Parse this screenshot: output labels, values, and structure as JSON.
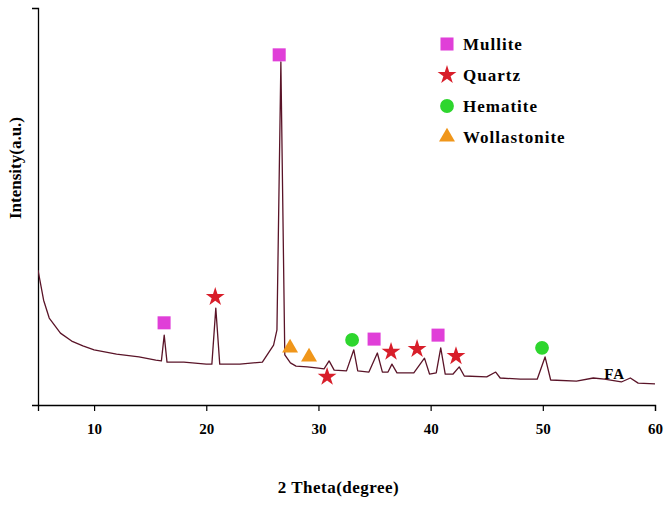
{
  "chart_data": {
    "type": "line",
    "x_label": "2 Theta(degree)",
    "y_label": "Intensity(a.u.)",
    "color": "#5a1428",
    "x": [
      5,
      5.5,
      6,
      7,
      8,
      9,
      10,
      12,
      14,
      15.5,
      16.0,
      16.25,
      16.5,
      18,
      20,
      20.5,
      20.85,
      21.2,
      23,
      25,
      26.0,
      26.3,
      26.65,
      27.0,
      27.5,
      28,
      29,
      30,
      30.5,
      30.95,
      31.4,
      32.5,
      33.15,
      33.5,
      34.5,
      35.25,
      35.7,
      36.2,
      36.55,
      37,
      38.5,
      39.45,
      39.9,
      40.5,
      40.9,
      41.3,
      42,
      42.55,
      43,
      45,
      45.8,
      46.2,
      48,
      49.5,
      50.2,
      50.7,
      53,
      54.5,
      55.5,
      57,
      57.8,
      58.5,
      60
    ],
    "values": [
      34.0,
      26.4,
      21.9,
      18.1,
      16.1,
      14.9,
      13.9,
      12.8,
      12.1,
      11.3,
      11.1,
      17.6,
      10.8,
      10.8,
      10.3,
      10.3,
      24.4,
      10.3,
      10.3,
      10.8,
      15.1,
      18.9,
      86.4,
      12.6,
      10.6,
      9.8,
      9.6,
      9.3,
      9.1,
      11.1,
      8.8,
      8.6,
      13.9,
      8.6,
      8.3,
      13.1,
      8.3,
      8.3,
      10.3,
      8.1,
      8.1,
      11.8,
      7.8,
      8.1,
      14.4,
      7.8,
      7.8,
      9.6,
      7.3,
      7.1,
      8.3,
      6.8,
      6.5,
      6.5,
      12.1,
      6.3,
      6.0,
      6.8,
      6.5,
      5.8,
      6.8,
      5.5,
      5.3
    ],
    "series": [
      {
        "name": "Mullite",
        "type": "scatter",
        "marker": "square",
        "color": "#e03fd8",
        "x": [
          16.24,
          26.5,
          34.96,
          40.66
        ],
        "values": [
          20.7,
          88.2,
          16.6,
          17.6
        ]
      },
      {
        "name": "Quartz",
        "type": "scatter",
        "marker": "star",
        "color": "#d81e2a",
        "x": [
          20.8,
          30.77,
          36.47,
          38.79,
          42.26
        ],
        "values": [
          27.2,
          7.1,
          13.4,
          14.1,
          12.3
        ]
      },
      {
        "name": "Hematite",
        "type": "scatter",
        "marker": "circle",
        "color": "#2ed62e",
        "x": [
          33.0,
          49.93
        ],
        "values": [
          16.4,
          14.4
        ]
      },
      {
        "name": "Wollastonite",
        "type": "scatter",
        "marker": "triangle",
        "color": "#f0961a",
        "x": [
          27.47,
          29.16
        ],
        "values": [
          14.4,
          12.1
        ]
      }
    ],
    "annotations": [
      {
        "text": "FA",
        "x": 56.4,
        "y": 6.5
      }
    ],
    "xlim": [
      5,
      60
    ],
    "xticks": [
      10,
      20,
      30,
      40,
      50,
      60
    ],
    "ylim": [
      0,
      100
    ],
    "yticks": [],
    "grid": false,
    "legend": "upper right",
    "tick_labels": "x"
  }
}
